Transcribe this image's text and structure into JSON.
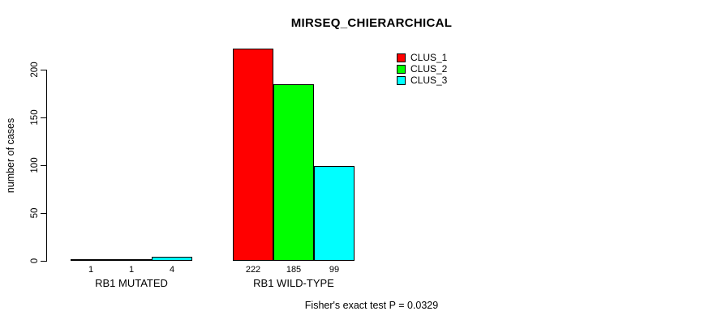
{
  "chart_data": {
    "type": "bar",
    "grouped": true,
    "title": "MIRSEQ_CHIERARCHICAL",
    "ylabel": "number of cases",
    "xlabel": "",
    "categories": [
      "RB1 MUTATED",
      "RB1 WILD-TYPE"
    ],
    "series": [
      {
        "name": "CLUS_1",
        "color": "#ff0000",
        "values": [
          1,
          222
        ]
      },
      {
        "name": "CLUS_2",
        "color": "#00ff00",
        "values": [
          1,
          185
        ]
      },
      {
        "name": "CLUS_3",
        "color": "#00ffff",
        "values": [
          4,
          99
        ]
      }
    ],
    "bar_value_labels": [
      [
        "1",
        "1",
        "4"
      ],
      [
        "222",
        "185",
        "99"
      ]
    ],
    "ylim": [
      0,
      200
    ],
    "yticks": [
      "0",
      "50",
      "100",
      "150",
      "200"
    ],
    "grid": false,
    "legend_position": "top-right",
    "annotation": "Fisher's exact test P = 0.0329"
  }
}
